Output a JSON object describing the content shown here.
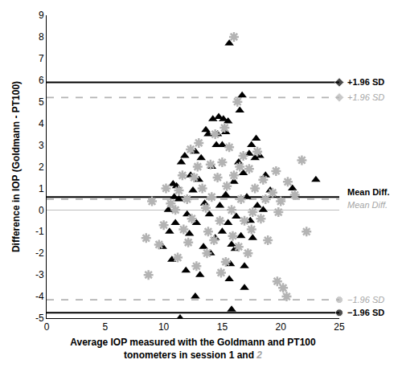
{
  "chart_data": {
    "type": "scatter",
    "y_label": "Difference in IOP (Goldmann - PT100)",
    "x_label": {
      "lines": [
        "Average IOP measured with the Goldmann and PT100",
        "tonometers in session 1 and"
      ],
      "session2_mark": "2"
    },
    "xlim": [
      0,
      25
    ],
    "xticks": [
      0,
      5,
      10,
      15,
      20,
      25
    ],
    "ylim": [
      -5,
      9
    ],
    "yticks": [
      -5,
      -4,
      -3,
      -2,
      -1,
      0,
      1,
      2,
      3,
      4,
      5,
      6,
      7,
      8,
      9
    ],
    "grid": false,
    "series": [
      {
        "color": "#000000",
        "marker": "triangle",
        "line_style": "solid",
        "x": [
          15.6,
          16.7,
          16.5,
          14.7,
          14.2,
          15.1,
          15.5,
          13.6,
          13.8,
          14.6,
          15.3,
          17.9,
          17.5,
          12.7,
          11.8,
          13.2,
          14.5,
          15.0,
          17.3,
          17.8,
          18.2,
          16.4,
          11.5,
          12.3,
          14.1,
          16.8,
          18.7,
          10.8,
          11.1,
          13.0,
          16.0,
          23.0,
          19.1,
          21.0,
          10.9,
          12.5,
          15.3,
          17.1,
          11.3,
          13.5,
          14.8,
          18.0,
          10.4,
          12.0,
          13.9,
          16.2,
          18.5,
          11.0,
          12.8,
          15.5,
          17.4,
          10.5,
          12.2,
          14.4,
          16.6,
          15.0,
          9.9,
          13.4,
          15.8,
          10.7,
          14.0,
          15.7,
          17.6,
          16.9,
          11.9,
          13.1,
          15.6,
          12.7,
          16.9,
          11.4,
          15.8,
          16.1
        ],
        "values": [
          7.7,
          5.3,
          4.6,
          4.3,
          4.2,
          4.2,
          4.1,
          3.7,
          3.5,
          3.5,
          3.6,
          3.3,
          3.0,
          2.7,
          2.5,
          2.4,
          3.0,
          3.0,
          2.6,
          2.4,
          2.5,
          2.2,
          2.2,
          1.6,
          2.0,
          1.7,
          1.6,
          1.2,
          1.1,
          1.4,
          1.3,
          1.4,
          0.9,
          1.0,
          0.6,
          0.9,
          0.7,
          0.6,
          0.5,
          0.3,
          0.2,
          0.2,
          0.0,
          -0.2,
          -0.2,
          -0.3,
          0.0,
          -0.6,
          -0.6,
          -0.6,
          -0.5,
          -1.0,
          -1.1,
          -1.3,
          -1.2,
          -1.0,
          -1.7,
          -1.7,
          -1.6,
          -2.3,
          -2.0,
          -2.5,
          -1.3,
          -2.6,
          -2.8,
          -3.0,
          -3.2,
          -4.0,
          -3.6,
          -5.0,
          -4.6,
          -1.8
        ],
        "lines": [
          {
            "label": "+1.96 SD",
            "value": 5.9,
            "marker": "diamond"
          },
          {
            "label": "Mean Diff.",
            "value": 0.6
          },
          {
            "label": "−1.96 SD",
            "value": -4.75,
            "marker": "circle"
          }
        ]
      },
      {
        "color": "#b3b3b3",
        "marker": "asterisk",
        "line_style": "dash",
        "x": [
          16.0,
          16.3,
          15.2,
          14.4,
          13.0,
          12.3,
          15.6,
          16.8,
          18.0,
          21.8,
          12.9,
          14.0,
          15.0,
          16.5,
          17.3,
          19.6,
          11.6,
          12.6,
          14.6,
          16.0,
          18.5,
          20.6,
          10.2,
          11.3,
          13.3,
          15.4,
          17.8,
          19.3,
          21.2,
          9.0,
          10.6,
          12.0,
          14.1,
          16.6,
          18.7,
          20.0,
          11.0,
          13.6,
          15.8,
          17.6,
          19.8,
          12.4,
          14.8,
          16.9,
          18.3,
          22.2,
          10.0,
          11.7,
          13.8,
          15.9,
          17.5,
          8.5,
          9.6,
          12.1,
          14.3,
          16.4,
          18.9,
          11.2,
          13.7,
          15.3,
          17.2,
          12.8,
          8.7,
          19.7,
          20.2,
          20.5,
          14.9
        ],
        "values": [
          8.0,
          5.0,
          3.8,
          3.5,
          3.1,
          2.8,
          2.9,
          2.5,
          2.7,
          2.3,
          2.0,
          2.1,
          2.2,
          2.0,
          1.9,
          1.8,
          1.6,
          1.5,
          1.5,
          1.6,
          1.4,
          1.3,
          1.0,
          0.9,
          1.0,
          1.1,
          1.0,
          0.8,
          0.7,
          0.4,
          0.3,
          0.5,
          0.6,
          0.5,
          0.5,
          0.4,
          0.0,
          0.1,
          0.0,
          -0.1,
          -0.1,
          -0.4,
          -0.5,
          -0.5,
          -0.4,
          -1.0,
          -0.7,
          -0.9,
          -1.0,
          -1.2,
          -0.9,
          -1.3,
          -1.6,
          -1.5,
          -1.4,
          -1.7,
          -1.4,
          -2.2,
          -2.0,
          -2.4,
          -2.0,
          -2.6,
          -3.0,
          -3.3,
          -3.6,
          -4.0,
          -2.9
        ],
        "lines": [
          {
            "label": "+1.96 SD",
            "value": 5.2,
            "marker": "diamond"
          },
          {
            "label": "Mean Diff.",
            "value": 0.5
          },
          {
            "label": "−1.96 SD",
            "value": -4.15,
            "marker": "circle"
          }
        ]
      }
    ]
  }
}
